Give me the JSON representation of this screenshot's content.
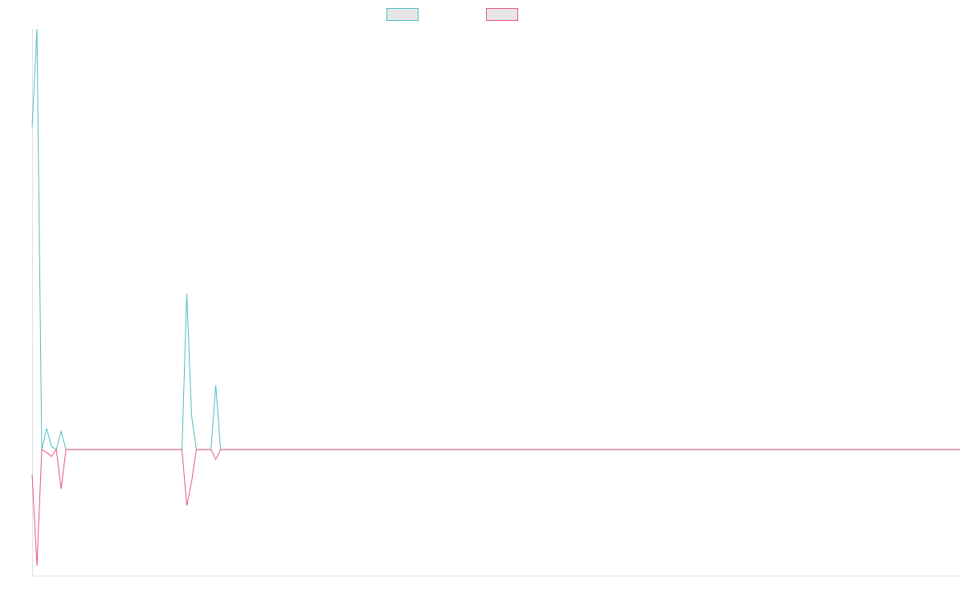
{
  "chart_data": {
    "type": "line",
    "title": "",
    "xlabel": "",
    "ylabel": "",
    "legend_position": "top-center",
    "grid": false,
    "ylim": [
      -90,
      300
    ],
    "x_count": 193,
    "series": [
      {
        "color": "#4bbfbf",
        "points": [
          [
            0,
            230
          ],
          [
            1,
            300
          ],
          [
            2,
            0
          ],
          [
            3,
            15
          ],
          [
            4,
            2
          ],
          [
            5,
            0
          ],
          [
            6,
            13
          ],
          [
            7,
            0
          ],
          [
            31,
            0
          ],
          [
            32,
            111
          ],
          [
            33,
            24
          ],
          [
            34,
            0
          ],
          [
            37,
            0
          ],
          [
            38,
            46
          ],
          [
            39,
            0
          ],
          [
            192,
            0
          ]
        ]
      },
      {
        "color": "#e8577a",
        "points": [
          [
            0,
            -18
          ],
          [
            1,
            -83
          ],
          [
            2,
            0
          ],
          [
            3,
            -2
          ],
          [
            4,
            -5
          ],
          [
            5,
            0
          ],
          [
            6,
            -28
          ],
          [
            7,
            0
          ],
          [
            31,
            0
          ],
          [
            32,
            -40
          ],
          [
            33,
            -23
          ],
          [
            34,
            0
          ],
          [
            37,
            0
          ],
          [
            38,
            -7
          ],
          [
            39,
            0
          ],
          [
            192,
            0
          ]
        ]
      }
    ]
  }
}
